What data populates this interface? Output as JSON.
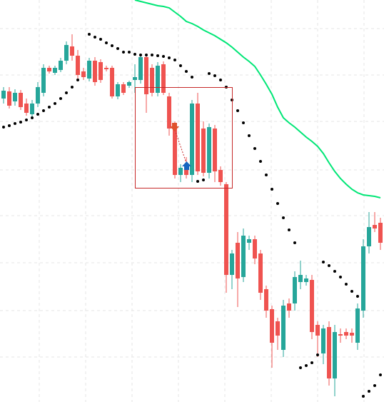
{
  "chart_data": {
    "type": "candlestick",
    "ylim": [
      0,
      563
    ],
    "up_color": "#26a69a",
    "down_color": "#ef5350",
    "sar_color": "#000000",
    "ma_color": "#00e676",
    "candles": [
      [
        425,
        441,
        418,
        436
      ],
      [
        435,
        441,
        411,
        415
      ],
      [
        421,
        438,
        415,
        433
      ],
      [
        433,
        437,
        409,
        413
      ],
      [
        418,
        425,
        401,
        405
      ],
      [
        403,
        423,
        399,
        418
      ],
      [
        418,
        448,
        413,
        441
      ],
      [
        433,
        473,
        428,
        468
      ],
      [
        468,
        471,
        460,
        463
      ],
      [
        461,
        471,
        458,
        468
      ],
      [
        465,
        482,
        462,
        478
      ],
      [
        478,
        505,
        473,
        500
      ],
      [
        498,
        515,
        478,
        485
      ],
      [
        485,
        493,
        453,
        458
      ],
      [
        463,
        468,
        451,
        455
      ],
      [
        453,
        482,
        449,
        478
      ],
      [
        478,
        483,
        443,
        448
      ],
      [
        476,
        480,
        447,
        451
      ],
      [
        468,
        471,
        463,
        466
      ],
      [
        468,
        471,
        425,
        428
      ],
      [
        428,
        448,
        424,
        445
      ],
      [
        445,
        448,
        430,
        433
      ],
      [
        443,
        450,
        440,
        448
      ],
      [
        451,
        473,
        433,
        455
      ],
      [
        451,
        488,
        446,
        483
      ],
      [
        483,
        488,
        405,
        431
      ],
      [
        468,
        473,
        428,
        433
      ],
      [
        433,
        476,
        428,
        471
      ],
      [
        473,
        477,
        430,
        433
      ],
      [
        428,
        433,
        373,
        383
      ],
      [
        388,
        393,
        313,
        318
      ],
      [
        318,
        333,
        308,
        328
      ],
      [
        328,
        343,
        313,
        318
      ],
      [
        318,
        423,
        308,
        418
      ],
      [
        418,
        433,
        318,
        323
      ],
      [
        383,
        393,
        316,
        321
      ],
      [
        321,
        390,
        313,
        385
      ],
      [
        383,
        388,
        308,
        323
      ],
      [
        325,
        330,
        303,
        308
      ],
      [
        305,
        308,
        153,
        178
      ],
      [
        178,
        213,
        158,
        208
      ],
      [
        223,
        238,
        133,
        173
      ],
      [
        175,
        243,
        168,
        233
      ],
      [
        223,
        233,
        213,
        228
      ],
      [
        228,
        233,
        193,
        201
      ],
      [
        208,
        213,
        143,
        153
      ],
      [
        158,
        163,
        118,
        128
      ],
      [
        130,
        135,
        48,
        83
      ],
      [
        113,
        118,
        73,
        93
      ],
      [
        73,
        143,
        63,
        135
      ],
      [
        138,
        145,
        118,
        128
      ],
      [
        138,
        183,
        128,
        175
      ],
      [
        168,
        198,
        158,
        178
      ],
      [
        168,
        178,
        163,
        173
      ],
      [
        171,
        178,
        88,
        98
      ],
      [
        108,
        113,
        63,
        93
      ],
      [
        68,
        108,
        53,
        103
      ],
      [
        105,
        113,
        23,
        33
      ],
      [
        33,
        108,
        8,
        98
      ],
      [
        95,
        103,
        83,
        93
      ],
      [
        98,
        103,
        88,
        93
      ],
      [
        97,
        103,
        83,
        93
      ],
      [
        83,
        138,
        73,
        131
      ],
      [
        128,
        228,
        118,
        218
      ],
      [
        218,
        266,
        208,
        245
      ],
      [
        248,
        266,
        238,
        243
      ],
      [
        251,
        258,
        213,
        223
      ]
    ],
    "sar": [
      385,
      387,
      390,
      392,
      395,
      398,
      403,
      408,
      413,
      418,
      425,
      433,
      441,
      451,
      null,
      515,
      511,
      508,
      503,
      499,
      495,
      490,
      490,
      487,
      486,
      486,
      486,
      485,
      484,
      482,
      479,
      471,
      463,
      455,
      309,
      311,
      460,
      457,
      451,
      441,
      423,
      408,
      391,
      373,
      355,
      337,
      318,
      298,
      278,
      258,
      241,
      223,
      48,
      51,
      55,
      66,
      196,
      191,
      183,
      175,
      165,
      155,
      148,
      8,
      15,
      23,
      38
    ],
    "ma": [
      null,
      null,
      null,
      null,
      null,
      null,
      null,
      null,
      null,
      null,
      null,
      null,
      null,
      null,
      null,
      null,
      null,
      null,
      null,
      null,
      null,
      null,
      null,
      563,
      561,
      559,
      557,
      555,
      554,
      552,
      546,
      540,
      533,
      530,
      526,
      521,
      517,
      513,
      508,
      503,
      497,
      490,
      483,
      477,
      470,
      458,
      445,
      431,
      413,
      398,
      391,
      385,
      378,
      371,
      365,
      358,
      348,
      335,
      323,
      313,
      305,
      298,
      293,
      290,
      289,
      288,
      286
    ]
  }
}
